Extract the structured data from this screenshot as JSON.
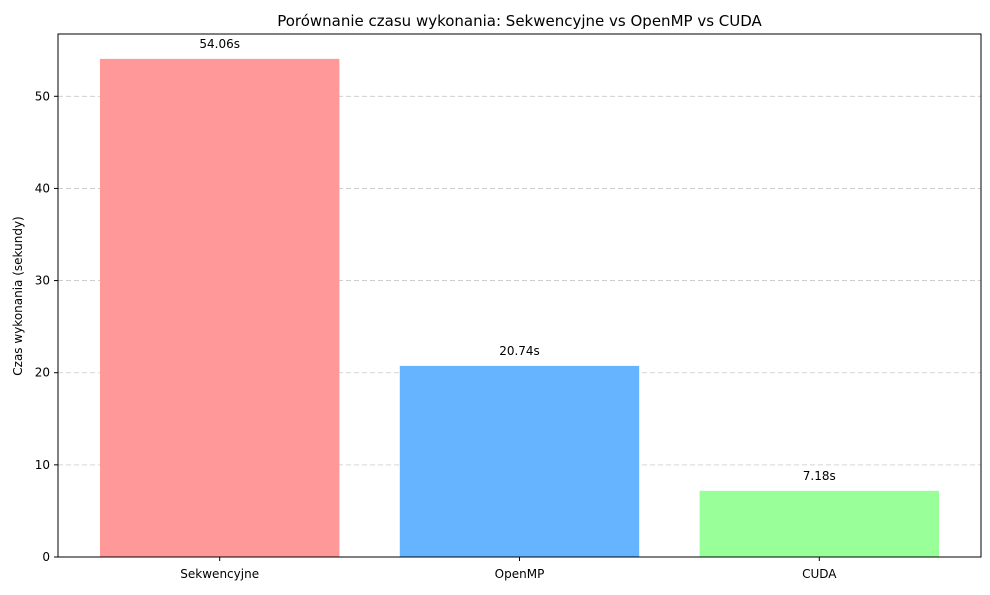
{
  "chart_data": {
    "type": "bar",
    "title": "Porównanie czasu wykonania: Sekwencyjne vs OpenMP vs CUDA",
    "xlabel": "",
    "ylabel": "Czas wykonania (sekundy)",
    "categories": [
      "Sekwencyjne",
      "OpenMP",
      "CUDA"
    ],
    "values": [
      54.06,
      20.74,
      7.18
    ],
    "value_labels": [
      "54.06s",
      "20.74s",
      "7.18s"
    ],
    "colors": [
      "#ff9999",
      "#66b3ff",
      "#99ff99"
    ],
    "ylim": [
      0,
      56.76
    ],
    "yticks": [
      0,
      10,
      20,
      30,
      40,
      50
    ],
    "grid": "y-dashed",
    "legend": "none"
  }
}
